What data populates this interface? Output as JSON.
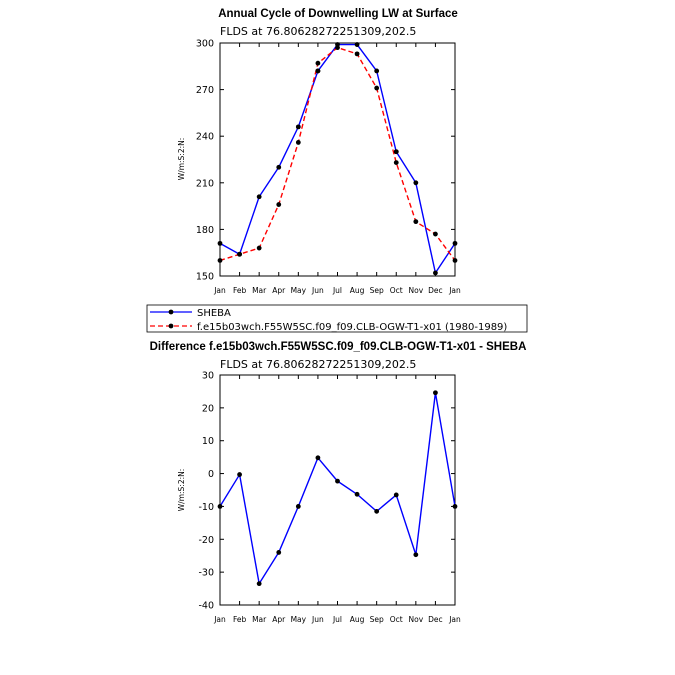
{
  "chart_data": [
    {
      "type": "line",
      "title": "Annual Cycle of Downwelling LW at Surface",
      "subtitle": "FLDS at 76.80628272251309,202.5",
      "ylabel": "W/m:S:2:N:",
      "xlabel": "",
      "categories": [
        "Jan",
        "Feb",
        "Mar",
        "Apr",
        "May",
        "Jun",
        "Jul",
        "Aug",
        "Sep",
        "Oct",
        "Nov",
        "Dec",
        "Jan"
      ],
      "ylim": [
        150,
        300
      ],
      "yticks": [
        150,
        180,
        210,
        240,
        270,
        300
      ],
      "series": [
        {
          "name": "SHEBA",
          "color": "#0000ff",
          "dash": "solid",
          "values": [
            171,
            164,
            201,
            220,
            246,
            282,
            299,
            299,
            282,
            230,
            210,
            152,
            171
          ]
        },
        {
          "name": "f.e15b03wch.F55W5SC.f09_f09.CLB-OGW-T1-x01 (1980-1989)",
          "color": "#ff0000",
          "dash": "dashed",
          "values": [
            160,
            164,
            168,
            196,
            236,
            287,
            297,
            293,
            271,
            223,
            185,
            177,
            160
          ]
        }
      ],
      "extra_markers": [
        {
          "index": 5,
          "value": 282
        },
        {
          "index": 9,
          "value": 230
        }
      ],
      "legend": "below"
    },
    {
      "type": "line",
      "title": "Difference f.e15b03wch.F55W5SC.f09_f09.CLB-OGW-T1-x01 - SHEBA",
      "subtitle": "FLDS at 76.80628272251309,202.5",
      "ylabel": "W/m:S:2:N:",
      "xlabel": "",
      "categories": [
        "Jan",
        "Feb",
        "Mar",
        "Apr",
        "May",
        "Jun",
        "Jul",
        "Aug",
        "Sep",
        "Oct",
        "Nov",
        "Dec",
        "Jan"
      ],
      "ylim": [
        -40,
        30
      ],
      "yticks": [
        -40,
        -30,
        -20,
        -10,
        0,
        10,
        20,
        30
      ],
      "series": [
        {
          "name": "",
          "color": "#0000ff",
          "dash": "solid",
          "values": [
            -10,
            -0.3,
            -33.5,
            -24,
            -10,
            4.8,
            -2.3,
            -6.3,
            -11.5,
            -6.5,
            -24.7,
            24.6,
            -10
          ]
        }
      ]
    }
  ]
}
